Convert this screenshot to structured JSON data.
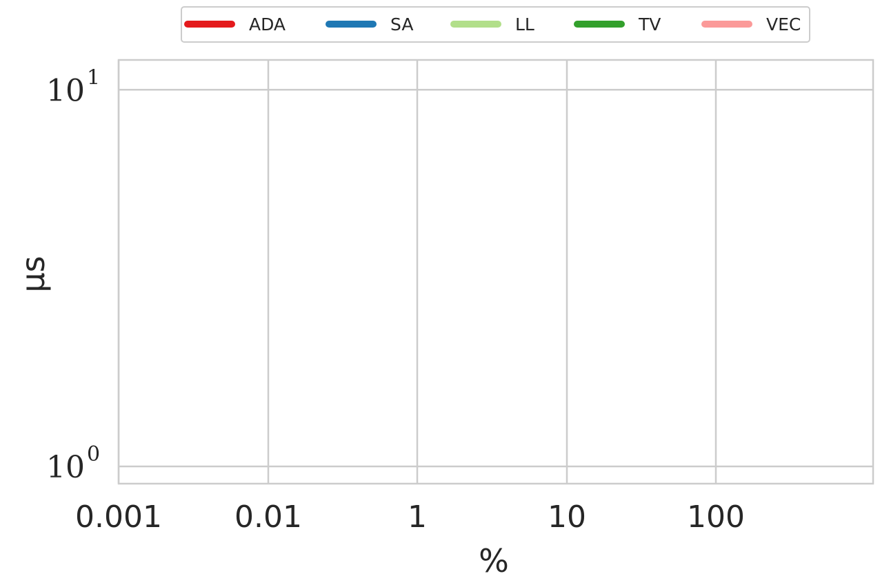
{
  "chart_data": {
    "type": "line",
    "xlabel": "%",
    "ylabel": "μs",
    "x_scale": "log",
    "y_scale": "log",
    "x_ticks": [
      "0.001",
      "0.01",
      "1",
      "10",
      "100"
    ],
    "y_ticks": [
      {
        "value": 1,
        "base": "10",
        "exp": "0"
      },
      {
        "value": 10,
        "base": "10",
        "exp": "1"
      }
    ],
    "ylim": [
      0.9,
      12
    ],
    "grid": true,
    "legend_position": "top-center",
    "series": [
      {
        "name": "ADA",
        "color": "#e41a1c",
        "x": [],
        "y": []
      },
      {
        "name": "SA",
        "color": "#1f78b4",
        "x": [],
        "y": []
      },
      {
        "name": "LL",
        "color": "#b2df8a",
        "x": [],
        "y": []
      },
      {
        "name": "TV",
        "color": "#33a02c",
        "x": [],
        "y": []
      },
      {
        "name": "VEC",
        "color": "#fb9a99",
        "x": [],
        "y": []
      }
    ]
  }
}
